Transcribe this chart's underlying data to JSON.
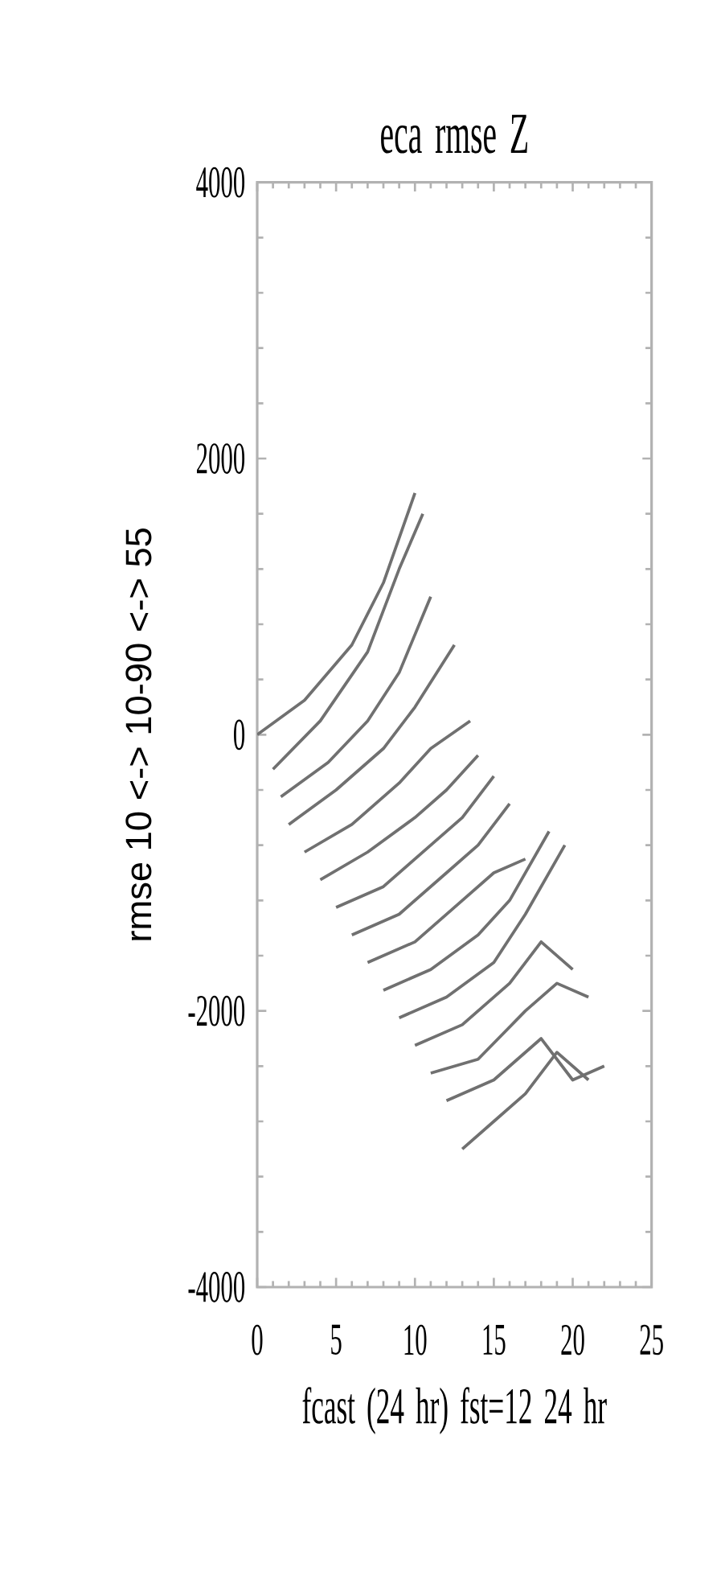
{
  "chart_data": {
    "type": "line",
    "title": "eca rmse Z",
    "xlabel": "fcast (24 hr) fst=12 24 hr",
    "ylabel": "rmse 10 <-> 10-90 <-> 55",
    "xlim": [
      0,
      25
    ],
    "xticks": [
      0,
      5,
      10,
      15,
      20,
      25
    ],
    "ylim": [
      -4000,
      4000
    ],
    "yticks": [
      -4000,
      -2000,
      0,
      2000,
      4000
    ],
    "grid": false,
    "marker": "none",
    "line_style": "solid",
    "series": [
      {
        "color": "#707070",
        "x": [
          0,
          3,
          6,
          8,
          10
        ],
        "values": [
          0,
          250,
          650,
          1100,
          1750
        ]
      },
      {
        "color": "#707070",
        "x": [
          1,
          4,
          7,
          9,
          10.5
        ],
        "values": [
          -250,
          100,
          600,
          1200,
          1600
        ]
      },
      {
        "color": "#707070",
        "x": [
          1.5,
          4.5,
          7,
          9,
          11
        ],
        "values": [
          -450,
          -200,
          100,
          450,
          1000
        ]
      },
      {
        "color": "#707070",
        "x": [
          2,
          5,
          8,
          10,
          12.5
        ],
        "values": [
          -650,
          -400,
          -100,
          200,
          650
        ]
      },
      {
        "color": "#707070",
        "x": [
          3,
          6,
          9,
          11,
          13.5
        ],
        "values": [
          -850,
          -650,
          -350,
          -100,
          100
        ]
      },
      {
        "color": "#707070",
        "x": [
          4,
          7,
          10,
          12,
          14
        ],
        "values": [
          -1050,
          -850,
          -600,
          -400,
          -150
        ]
      },
      {
        "color": "#707070",
        "x": [
          5,
          8,
          11,
          13,
          15
        ],
        "values": [
          -1250,
          -1100,
          -800,
          -600,
          -300
        ]
      },
      {
        "color": "#707070",
        "x": [
          6,
          9,
          12,
          14,
          16
        ],
        "values": [
          -1450,
          -1300,
          -1000,
          -800,
          -500
        ]
      },
      {
        "color": "#707070",
        "x": [
          7,
          10,
          13,
          15,
          17
        ],
        "values": [
          -1650,
          -1500,
          -1200,
          -1000,
          -900
        ]
      },
      {
        "color": "#707070",
        "x": [
          8,
          11,
          14,
          16,
          18.5
        ],
        "values": [
          -1850,
          -1700,
          -1450,
          -1200,
          -700
        ]
      },
      {
        "color": "#707070",
        "x": [
          9,
          12,
          15,
          17,
          19.5
        ],
        "values": [
          -2050,
          -1900,
          -1650,
          -1300,
          -800
        ]
      },
      {
        "color": "#707070",
        "x": [
          10,
          13,
          16,
          18,
          20
        ],
        "values": [
          -2250,
          -2100,
          -1800,
          -1500,
          -1700
        ]
      },
      {
        "color": "#707070",
        "x": [
          11,
          14,
          17,
          19,
          21
        ],
        "values": [
          -2450,
          -2350,
          -2000,
          -1800,
          -1900
        ]
      },
      {
        "color": "#707070",
        "x": [
          12,
          15,
          18,
          20,
          22
        ],
        "values": [
          -2650,
          -2500,
          -2200,
          -2500,
          -2400
        ]
      },
      {
        "color": "#707070",
        "x": [
          13,
          15,
          17,
          19,
          21
        ],
        "values": [
          -3000,
          -2800,
          -2600,
          -2300,
          -2500
        ]
      }
    ]
  }
}
